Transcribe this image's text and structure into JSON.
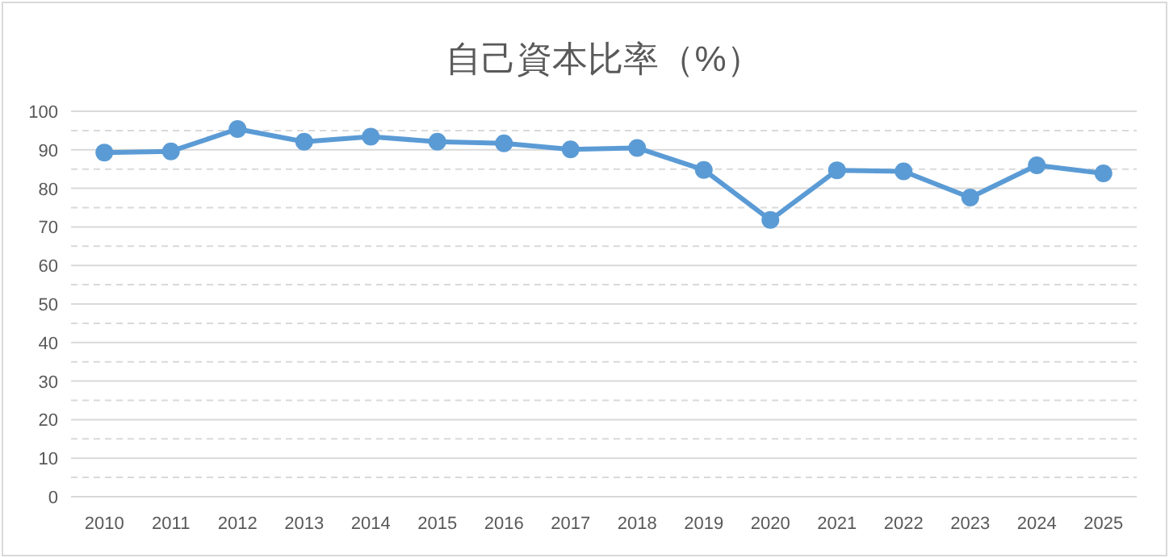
{
  "chart_data": {
    "type": "line",
    "title": "自己資本比率（%）",
    "categories": [
      "2010",
      "2011",
      "2012",
      "2013",
      "2014",
      "2015",
      "2016",
      "2017",
      "2018",
      "2019",
      "2020",
      "2021",
      "2022",
      "2023",
      "2024",
      "2025"
    ],
    "series": [
      {
        "color": "#5b9bd5",
        "values": [
          89.3,
          89.6,
          95.4,
          92.1,
          93.4,
          92.1,
          91.7,
          90.1,
          90.5,
          84.8,
          71.8,
          84.7,
          84.4,
          77.6,
          86.0,
          83.9
        ]
      }
    ],
    "ylim": [
      0,
      100
    ],
    "yticks": [
      0,
      {
        "value": 5,
        "label": null
      },
      10,
      {
        "value": 15,
        "label": null
      },
      20,
      {
        "value": 25,
        "label": null
      },
      30,
      {
        "value": 35,
        "label": null
      },
      40,
      {
        "value": 45,
        "label": null
      },
      50,
      {
        "value": 55,
        "label": null
      },
      60,
      {
        "value": 65,
        "label": null
      },
      70,
      {
        "value": 75,
        "label": null
      },
      80,
      {
        "value": 85,
        "label": null
      },
      90,
      {
        "value": 95,
        "label": null
      },
      100
    ],
    "grid": "y",
    "marker": "circle",
    "line_style": "solid"
  }
}
